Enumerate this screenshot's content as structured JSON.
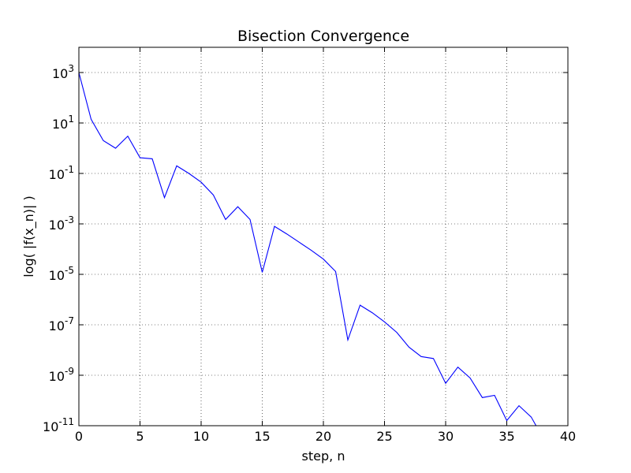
{
  "chart_data": {
    "type": "line",
    "title": "Bisection Convergence",
    "xlabel": "step, n",
    "ylabel": "log( |f(x_n)| )",
    "xlim": [
      0,
      40
    ],
    "ylim": [
      1e-11,
      10000
    ],
    "yscale": "log",
    "grid": true,
    "legend": "none",
    "x_ticks": [
      0,
      5,
      10,
      15,
      20,
      25,
      30,
      35,
      40
    ],
    "y_ticks": [
      {
        "value": 1e-11,
        "base": "10",
        "exp": "-11"
      },
      {
        "value": 1e-09,
        "base": "10",
        "exp": "-9"
      },
      {
        "value": 1e-07,
        "base": "10",
        "exp": "-7"
      },
      {
        "value": 1e-05,
        "base": "10",
        "exp": "-5"
      },
      {
        "value": 0.001,
        "base": "10",
        "exp": "-3"
      },
      {
        "value": 0.1,
        "base": "10",
        "exp": "-1"
      },
      {
        "value": 10,
        "base": "10",
        "exp": "1"
      },
      {
        "value": 1000,
        "base": "10",
        "exp": "3"
      }
    ],
    "line_color": "#0000ff",
    "series": [
      {
        "x": [
          0,
          1,
          2,
          3,
          4,
          5,
          6,
          7,
          8,
          9,
          10,
          11,
          12,
          13,
          14,
          15,
          16,
          17,
          18,
          19,
          20,
          21,
          22,
          23,
          24,
          25,
          26,
          27,
          28,
          29,
          30,
          31,
          32,
          33,
          34,
          35,
          36,
          37,
          38
        ],
        "values": [
          1000,
          14,
          2,
          1,
          3,
          0.42,
          0.38,
          0.011,
          0.2,
          0.1,
          0.045,
          0.014,
          0.0015,
          0.0048,
          0.0015,
          1.2e-05,
          0.0008,
          0.0004,
          0.00019,
          9e-05,
          4e-05,
          1.3e-05,
          2.5e-08,
          6e-07,
          3e-07,
          1.3e-07,
          5e-08,
          1.3e-08,
          5.5e-09,
          4.6e-09,
          4.8e-10,
          2.1e-09,
          7.8e-10,
          1.3e-10,
          1.6e-10,
          1.6e-11,
          6.2e-11,
          2.2e-11,
          3e-12
        ]
      }
    ]
  }
}
